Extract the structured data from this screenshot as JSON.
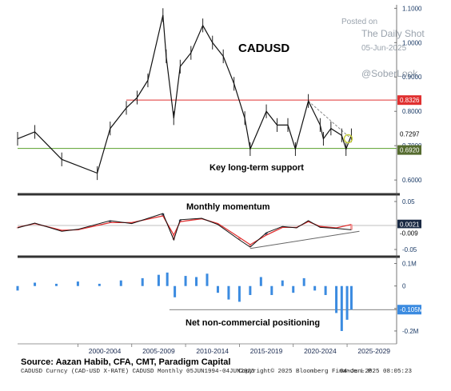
{
  "chart_data": [
    {
      "type": "line",
      "title": "CADUSD",
      "y_scale": "linear",
      "ylim": [
        0.57,
        1.11
      ],
      "y_ticks": [
        "1.1000",
        "1.0000",
        "0.9000",
        "0.8000",
        "0.7000",
        "0.6000"
      ],
      "y_tick_values": [
        1.1,
        1.0,
        0.9,
        0.8,
        0.7,
        0.6
      ],
      "series": [
        {
          "name": "CADUSD",
          "x": [
            1994.4,
            1996,
            1998.5,
            2001.8,
            2003,
            2004.5,
            2005.5,
            2006.5,
            2007.9,
            2008.2,
            2008.9,
            2009.5,
            2010.5,
            2011.6,
            2012.5,
            2013.5,
            2014.5,
            2015.5,
            2016.0,
            2017.5,
            2018.5,
            2019.5,
            2020.2,
            2021.4,
            2022.5,
            2022.8,
            2023.5,
            2024.5,
            2024.9,
            2025.4
          ],
          "values": [
            0.72,
            0.74,
            0.66,
            0.62,
            0.75,
            0.81,
            0.84,
            0.89,
            1.08,
            0.96,
            0.78,
            0.93,
            0.97,
            1.05,
            1.0,
            0.96,
            0.88,
            0.78,
            0.69,
            0.8,
            0.76,
            0.76,
            0.69,
            0.83,
            0.76,
            0.72,
            0.75,
            0.73,
            0.69,
            0.73
          ]
        }
      ],
      "horizontal_lines": [
        {
          "value": 0.8326,
          "label": "0.8326",
          "color": "#e03030"
        },
        {
          "value": 0.692,
          "label": "0.6920",
          "color": "#5aa02c"
        }
      ],
      "last_value": {
        "label": "0.7297",
        "value": 0.7297
      },
      "annotations": [
        "Key long-term support"
      ]
    },
    {
      "type": "line",
      "title": "Monthly momentum",
      "ylim": [
        -0.06,
        0.06
      ],
      "y_ticks": [
        "0.05",
        "-0.05"
      ],
      "y_tick_values": [
        0.05,
        -0.05
      ],
      "series": [
        {
          "name": "momentum",
          "x": [
            1994.4,
            1996,
            1998.5,
            2000,
            2003,
            2005,
            2007.9,
            2008.9,
            2009.5,
            2011.5,
            2013,
            2015,
            2016,
            2017.5,
            2019,
            2020.3,
            2021.4,
            2022.5,
            2024,
            2025.4
          ],
          "values": [
            -0.005,
            0.005,
            -0.012,
            -0.008,
            0.01,
            0.004,
            0.025,
            -0.03,
            0.012,
            0.015,
            0.002,
            -0.03,
            -0.045,
            -0.015,
            -0.002,
            -0.005,
            0.01,
            -0.004,
            -0.006,
            -0.009
          ]
        },
        {
          "name": "signal",
          "x": [
            1994.4,
            1996,
            1998.5,
            2000,
            2003,
            2005,
            2007.9,
            2008.9,
            2009.5,
            2011.5,
            2013,
            2015,
            2016,
            2017.5,
            2019,
            2020.3,
            2021.4,
            2022.5,
            2024,
            2025.4
          ],
          "values": [
            -0.004,
            0.004,
            -0.01,
            -0.009,
            0.006,
            0.006,
            0.02,
            -0.02,
            0.008,
            0.014,
            0.004,
            -0.025,
            -0.04,
            -0.02,
            -0.004,
            -0.004,
            0.008,
            -0.002,
            -0.005,
            0.0021
          ]
        }
      ],
      "last_values": [
        {
          "label": "0.0021",
          "value": 0.0021
        },
        {
          "label": "-0.009",
          "value": -0.009
        }
      ],
      "trend_line": {
        "x": [
          2016,
          2025.4
        ],
        "values": [
          -0.048,
          -0.012
        ]
      }
    },
    {
      "type": "bar",
      "title": "Net non-commercial positioning",
      "ylim": [
        -250000,
        120000
      ],
      "y_ticks": [
        "0.1M",
        "0",
        "-0.1M",
        "-0.2M"
      ],
      "y_tick_values": [
        100000,
        0,
        -100000,
        -200000
      ],
      "x": [
        1994.4,
        1996,
        1998,
        2000,
        2002,
        2004,
        2006,
        2007.5,
        2008.3,
        2009,
        2010,
        2011,
        2012,
        2013,
        2014,
        2015,
        2016,
        2017,
        2018,
        2019,
        2020,
        2021,
        2022,
        2023,
        2024,
        2024.5,
        2025,
        2025.4
      ],
      "values": [
        -20000,
        15000,
        10000,
        20000,
        10000,
        25000,
        35000,
        50000,
        60000,
        -50000,
        45000,
        40000,
        55000,
        -30000,
        -60000,
        -70000,
        -40000,
        40000,
        -40000,
        25000,
        -30000,
        35000,
        -20000,
        -40000,
        -120000,
        -200000,
        -150000,
        -105000
      ],
      "last_value": {
        "label": "-0.105M",
        "value": -105000
      },
      "reference_line": {
        "value": -105000
      },
      "annotations": [
        "Net non-commercial positioning"
      ]
    }
  ],
  "x_axis": {
    "range": [
      1994.4,
      2029.6
    ],
    "tick_labels": [
      "2000-2004",
      "2005-2009",
      "2010-2014",
      "2015-2019",
      "2020-2024",
      "2025-2029"
    ],
    "tick_centers": [
      2002.5,
      2007.5,
      2012.5,
      2017.5,
      2022.5,
      2027.5
    ]
  },
  "watermark": {
    "line1": "Posted on",
    "line2": "The Daily Shot",
    "line3": "05-Jun-2025",
    "line4": "@SoberLook"
  },
  "source": "Source: Aazan Habib, CFA, CMT, Paradigm Capital",
  "footer": {
    "left": "CADUSD Curncy (CAD-USD X-RATE) CADUSD  Monthly 05JUN1994-04JUN2025",
    "center": "Copyright© 2025 Bloomberg Finance L.P.",
    "right": "04-Jun-2025 08:05:23"
  },
  "colors": {
    "price": "#111111",
    "resistance": "#e03030",
    "support": "#5aa02c",
    "momentum_fast": "#111111",
    "momentum_slow": "#e03030",
    "momentum_fill_positive": "#4a6a88",
    "momentum_fill_negative": "#f2a0a0",
    "positioning_bars": "#3b8be0",
    "separator": "#333333",
    "axis_text": "#1a3a66"
  }
}
